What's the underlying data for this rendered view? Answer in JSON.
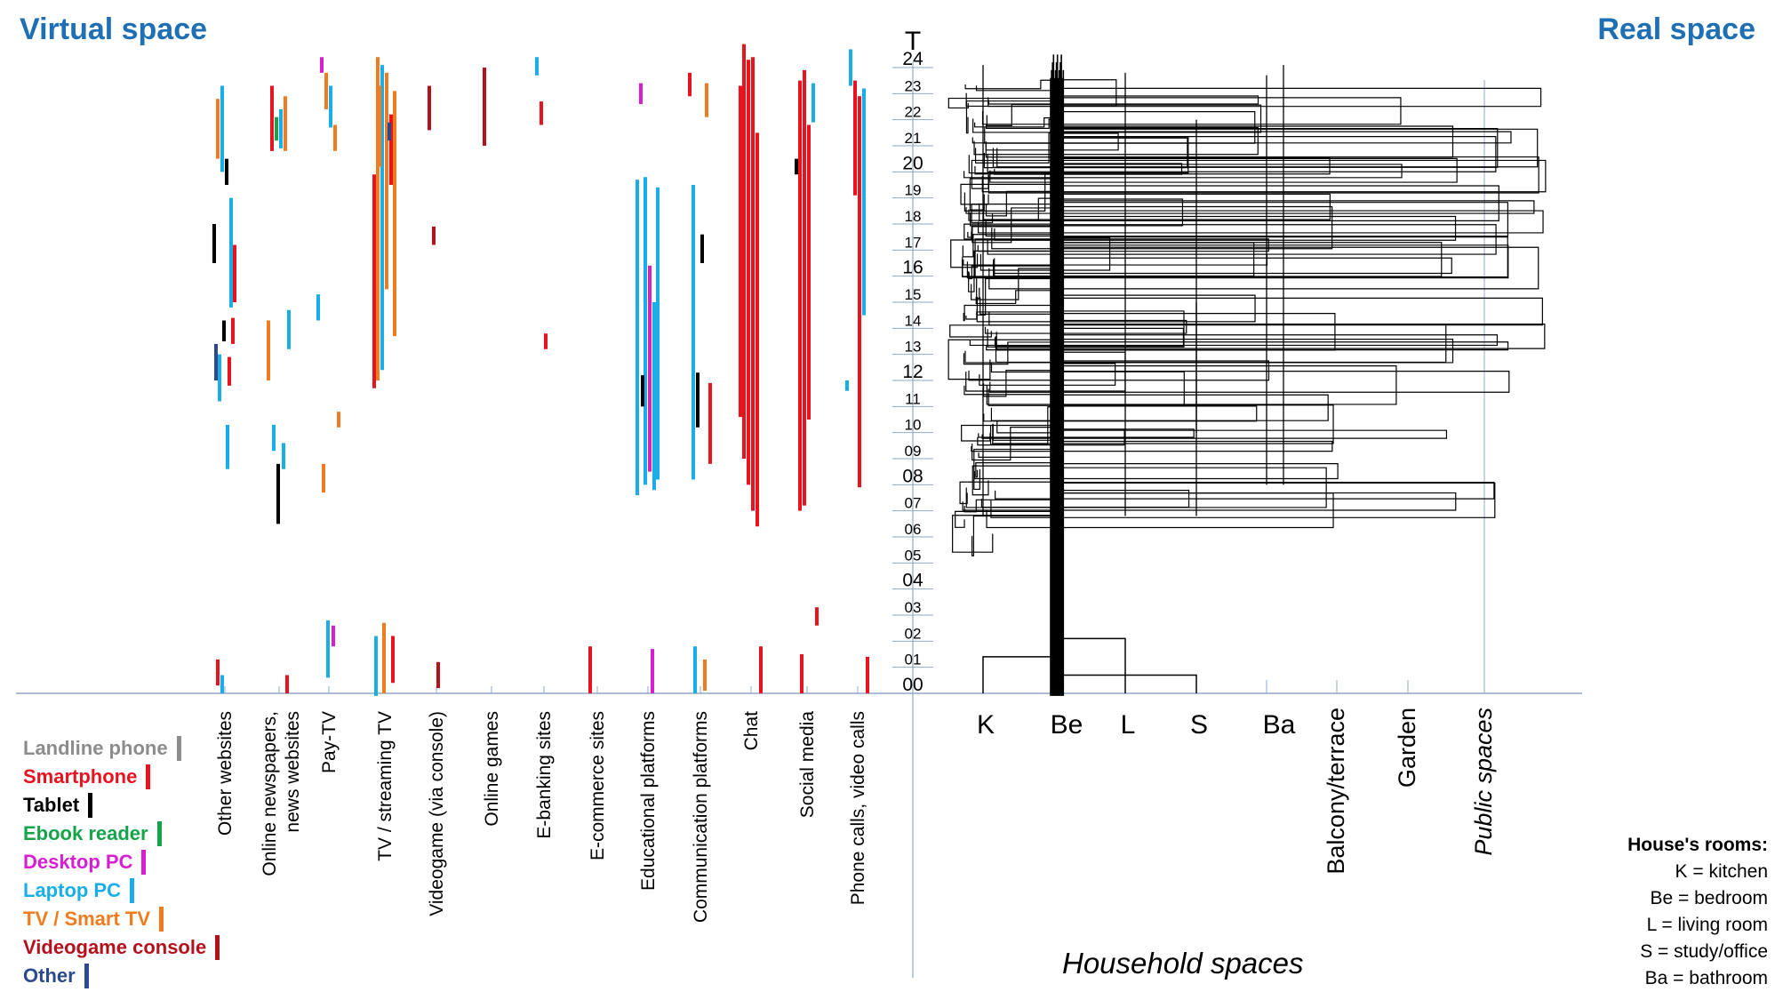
{
  "titles": {
    "left": "Virtual space",
    "right": "Real space"
  },
  "colors": {
    "title": "#1f6fb4",
    "axis": "#8ea9c8"
  },
  "legend": [
    {
      "label": "Landline phone",
      "color": "#8c8c8c"
    },
    {
      "label": "Smartphone",
      "color": "#e8131f"
    },
    {
      "label": "Tablet",
      "color": "#000000"
    },
    {
      "label": "Ebook reader",
      "color": "#17a34a"
    },
    {
      "label": "Desktop PC",
      "color": "#d61fd0"
    },
    {
      "label": "Laptop PC",
      "color": "#1aaee8"
    },
    {
      "label": "TV / Smart TV",
      "color": "#f07c1f"
    },
    {
      "label": "Videogame console",
      "color": "#b3121c"
    },
    {
      "label": "Other",
      "color": "#2b4a8e"
    }
  ],
  "rooms_legend": {
    "title": "House's rooms:",
    "items": [
      "K = kitchen",
      "Be = bedroom",
      "L = living room",
      "S = study/office",
      "Ba = bathroom"
    ]
  },
  "chart_data": {
    "type": "timeline",
    "time_axis": {
      "label": "T",
      "range": [
        0,
        24
      ],
      "ticks": [
        "00",
        "01",
        "02",
        "03",
        "04",
        "05",
        "06",
        "07",
        "08",
        "09",
        "10",
        "11",
        "12",
        "13",
        "14",
        "15",
        "16",
        "17",
        "18",
        "19",
        "20",
        "21",
        "22",
        "23",
        "24"
      ]
    },
    "virtual_categories": [
      "Other websites",
      "Online newspapers, news websites",
      "Pay-TV",
      "TV / streaming TV",
      "Videogame (via console)",
      "Online games",
      "E-banking sites",
      "E-commerce sites",
      "Educational platforms",
      "Communication platforms",
      "Chat",
      "Social media",
      "Phone calls, video calls"
    ],
    "household_axis": {
      "label": "Household spaces",
      "categories": [
        "K",
        "Be",
        "L",
        "S",
        "Ba",
        "Balcony/terrace",
        "Garden",
        "Public spaces"
      ]
    },
    "virtual_segments": [
      {
        "category": "Other websites",
        "device": "TV / Smart TV",
        "start": 20.5,
        "end": 22.8
      },
      {
        "category": "Other websites",
        "device": "Laptop PC",
        "start": 20.0,
        "end": 23.3
      },
      {
        "category": "Other websites",
        "device": "Tablet",
        "start": 19.5,
        "end": 20.5
      },
      {
        "category": "Other websites",
        "device": "Laptop PC",
        "start": 14.8,
        "end": 19.0
      },
      {
        "category": "Other websites",
        "device": "Tablet",
        "start": 16.5,
        "end": 18.0
      },
      {
        "category": "Other websites",
        "device": "Smartphone",
        "start": 15.0,
        "end": 17.2
      },
      {
        "category": "Other websites",
        "device": "Laptop PC",
        "start": 11.2,
        "end": 13.0
      },
      {
        "category": "Other websites",
        "device": "Smartphone",
        "start": 11.8,
        "end": 12.9
      },
      {
        "category": "Other websites",
        "device": "Tablet",
        "start": 13.5,
        "end": 14.3
      },
      {
        "category": "Other websites",
        "device": "Smartphone",
        "start": 13.4,
        "end": 14.4
      },
      {
        "category": "Other websites",
        "device": "Other",
        "start": 12.0,
        "end": 13.4
      },
      {
        "category": "Other websites",
        "device": "Laptop PC",
        "start": 8.6,
        "end": 10.3
      },
      {
        "category": "Other websites",
        "device": "Smartphone",
        "start": 0.3,
        "end": 1.3
      },
      {
        "category": "Other websites",
        "device": "Laptop PC",
        "start": 0.0,
        "end": 0.7
      },
      {
        "category": "Online newspapers, news websites",
        "device": "Smartphone",
        "start": 20.8,
        "end": 23.3
      },
      {
        "category": "Online newspapers, news websites",
        "device": "Ebook reader",
        "start": 21.2,
        "end": 22.1
      },
      {
        "category": "Online newspapers, news websites",
        "device": "Laptop PC",
        "start": 20.9,
        "end": 22.4
      },
      {
        "category": "Online newspapers, news websites",
        "device": "TV / Smart TV",
        "start": 20.8,
        "end": 22.9
      },
      {
        "category": "Online newspapers, news websites",
        "device": "TV / Smart TV",
        "start": 12.0,
        "end": 14.3
      },
      {
        "category": "Online newspapers, news websites",
        "device": "Laptop PC",
        "start": 13.2,
        "end": 14.7
      },
      {
        "category": "Online newspapers, news websites",
        "device": "Laptop PC",
        "start": 9.3,
        "end": 10.3
      },
      {
        "category": "Online newspapers, news websites",
        "device": "Laptop PC",
        "start": 8.6,
        "end": 9.6
      },
      {
        "category": "Online newspapers, news websites",
        "device": "Tablet",
        "start": 6.5,
        "end": 8.8
      },
      {
        "category": "Online newspapers, news websites",
        "device": "Smartphone",
        "start": 0.0,
        "end": 0.7
      },
      {
        "category": "Pay-TV",
        "device": "Desktop PC",
        "start": 23.8,
        "end": 24.4
      },
      {
        "category": "Pay-TV",
        "device": "TV / Smart TV",
        "start": 22.4,
        "end": 23.8
      },
      {
        "category": "Pay-TV",
        "device": "Laptop PC",
        "start": 21.7,
        "end": 23.3
      },
      {
        "category": "Pay-TV",
        "device": "TV / Smart TV",
        "start": 20.8,
        "end": 21.8
      },
      {
        "category": "Pay-TV",
        "device": "Laptop PC",
        "start": 14.3,
        "end": 15.3
      },
      {
        "category": "Pay-TV",
        "device": "TV / Smart TV",
        "start": 10.2,
        "end": 10.8
      },
      {
        "category": "Pay-TV",
        "device": "TV / Smart TV",
        "start": 7.7,
        "end": 8.8
      },
      {
        "category": "Pay-TV",
        "device": "Desktop PC",
        "start": 1.8,
        "end": 2.6
      },
      {
        "category": "Pay-TV",
        "device": "Laptop PC",
        "start": 0.6,
        "end": 2.8
      },
      {
        "category": "TV / streaming TV",
        "device": "TV / Smart TV",
        "start": 12.0,
        "end": 24.4
      },
      {
        "category": "TV / streaming TV",
        "device": "Laptop PC",
        "start": 12.4,
        "end": 24.1
      },
      {
        "category": "TV / streaming TV",
        "device": "TV / Smart TV",
        "start": 15.5,
        "end": 23.8
      },
      {
        "category": "TV / streaming TV",
        "device": "Smartphone",
        "start": 19.5,
        "end": 22.2
      },
      {
        "category": "TV / streaming TV",
        "device": "Smartphone",
        "start": 11.7,
        "end": 19.9
      },
      {
        "category": "TV / streaming TV",
        "device": "TV / Smart TV",
        "start": 13.7,
        "end": 23.1
      },
      {
        "category": "TV / streaming TV",
        "device": "TV / Smart TV",
        "start": 20.2,
        "end": 23.3
      },
      {
        "category": "TV / streaming TV",
        "device": "Other",
        "start": 21.2,
        "end": 21.9
      },
      {
        "category": "TV / streaming TV",
        "device": "TV / Smart TV",
        "start": 0.0,
        "end": 2.7
      },
      {
        "category": "TV / streaming TV",
        "device": "Smartphone",
        "start": 0.4,
        "end": 2.2
      },
      {
        "category": "TV / streaming TV",
        "device": "Laptop PC",
        "start": -0.1,
        "end": 2.2
      },
      {
        "category": "Videogame (via console)",
        "device": "Videogame console",
        "start": 21.6,
        "end": 23.3
      },
      {
        "category": "Videogame (via console)",
        "device": "Videogame console",
        "start": 17.2,
        "end": 17.9
      },
      {
        "category": "Videogame (via console)",
        "device": "Videogame console",
        "start": 0.2,
        "end": 1.2
      },
      {
        "category": "Online games",
        "device": "Videogame console",
        "start": 21.0,
        "end": 24.0
      },
      {
        "category": "E-banking sites",
        "device": "Laptop PC",
        "start": 23.7,
        "end": 24.4
      },
      {
        "category": "E-banking sites",
        "device": "Smartphone",
        "start": 21.8,
        "end": 22.7
      },
      {
        "category": "E-banking sites",
        "device": "Smartphone",
        "start": 13.2,
        "end": 13.8
      },
      {
        "category": "E-commerce sites",
        "device": "Smartphone",
        "start": 0.0,
        "end": 1.8
      },
      {
        "category": "Educational platforms",
        "device": "Desktop PC",
        "start": 22.6,
        "end": 23.4
      },
      {
        "category": "Educational platforms",
        "device": "Laptop PC",
        "start": 8.0,
        "end": 19.8
      },
      {
        "category": "Educational platforms",
        "device": "Desktop PC",
        "start": 8.5,
        "end": 16.4
      },
      {
        "category": "Educational platforms",
        "device": "Laptop PC",
        "start": 7.8,
        "end": 15.0
      },
      {
        "category": "Educational platforms",
        "device": "Laptop PC",
        "start": 7.6,
        "end": 19.7
      },
      {
        "category": "Educational platforms",
        "device": "Laptop PC",
        "start": 8.2,
        "end": 19.4
      },
      {
        "category": "Educational platforms",
        "device": "Tablet",
        "start": 11.0,
        "end": 12.2
      },
      {
        "category": "Educational platforms",
        "device": "Desktop PC",
        "start": 0.0,
        "end": 1.7
      },
      {
        "category": "Communication platforms",
        "device": "Laptop PC",
        "start": 8.2,
        "end": 19.5
      },
      {
        "category": "Communication platforms",
        "device": "Tablet",
        "start": 10.2,
        "end": 12.3
      },
      {
        "category": "Communication platforms",
        "device": "Tablet",
        "start": 16.5,
        "end": 17.6
      },
      {
        "category": "Communication platforms",
        "device": "TV / Smart TV",
        "start": 22.1,
        "end": 23.4
      },
      {
        "category": "Communication platforms",
        "device": "Smartphone",
        "start": 22.9,
        "end": 23.8
      },
      {
        "category": "Communication platforms",
        "device": "Smartphone",
        "start": 8.8,
        "end": 11.9
      },
      {
        "category": "Communication platforms",
        "device": "Laptop PC",
        "start": 0.0,
        "end": 1.8
      },
      {
        "category": "Communication platforms",
        "device": "TV / Smart TV",
        "start": 0.1,
        "end": 1.3
      },
      {
        "category": "Chat",
        "device": "Smartphone",
        "start": 9.0,
        "end": 24.9
      },
      {
        "category": "Chat",
        "device": "Smartphone",
        "start": 8.0,
        "end": 24.3
      },
      {
        "category": "Chat",
        "device": "Smartphone",
        "start": 7.0,
        "end": 24.4
      },
      {
        "category": "Chat",
        "device": "Smartphone",
        "start": 6.4,
        "end": 21.5
      },
      {
        "category": "Chat",
        "device": "Smartphone",
        "start": 10.6,
        "end": 23.3
      },
      {
        "category": "Chat",
        "device": "Smartphone",
        "start": 0.0,
        "end": 1.8
      },
      {
        "category": "Social media",
        "device": "Smartphone",
        "start": 7.0,
        "end": 23.5
      },
      {
        "category": "Social media",
        "device": "Smartphone",
        "start": 7.2,
        "end": 23.9
      },
      {
        "category": "Social media",
        "device": "Smartphone",
        "start": 10.5,
        "end": 21.8
      },
      {
        "category": "Social media",
        "device": "Laptop PC",
        "start": 21.9,
        "end": 23.4
      },
      {
        "category": "Social media",
        "device": "Tablet",
        "start": 19.9,
        "end": 20.5
      },
      {
        "category": "Social media",
        "device": "Smartphone",
        "start": 2.6,
        "end": 3.3
      },
      {
        "category": "Social media",
        "device": "Smartphone",
        "start": 0.0,
        "end": 1.5
      },
      {
        "category": "Phone calls, video calls",
        "device": "Laptop PC",
        "start": 23.3,
        "end": 24.7
      },
      {
        "category": "Phone calls, video calls",
        "device": "Smartphone",
        "start": 19.1,
        "end": 23.5
      },
      {
        "category": "Phone calls, video calls",
        "device": "Smartphone",
        "start": 7.9,
        "end": 22.9
      },
      {
        "category": "Phone calls, video calls",
        "device": "Laptop PC",
        "start": 14.5,
        "end": 23.2
      },
      {
        "category": "Phone calls, video calls",
        "device": "Laptop PC",
        "start": 11.6,
        "end": 12.0
      },
      {
        "category": "Phone calls, video calls",
        "device": "Smartphone",
        "start": 0.0,
        "end": 1.4
      }
    ]
  }
}
